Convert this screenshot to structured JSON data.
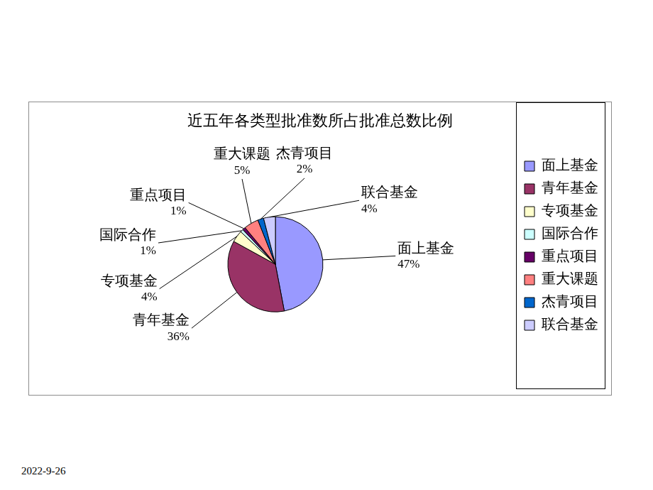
{
  "chart_data": {
    "type": "pie",
    "title": "近五年各类型批准数所占批准总数比例",
    "categories": [
      "面上基金",
      "青年基金",
      "专项基金",
      "国际合作",
      "重点项目",
      "重大课题",
      "杰青项目",
      "联合基金"
    ],
    "values": [
      47,
      36,
      4,
      1,
      1,
      5,
      2,
      4
    ],
    "value_labels": [
      "47%",
      "36%",
      "4%",
      "1%",
      "1%",
      "5%",
      "2%",
      "4%"
    ],
    "colors": [
      "#9999ff",
      "#993366",
      "#ffffcc",
      "#ccffff",
      "#660066",
      "#ff8080",
      "#0066cc",
      "#ccccff"
    ],
    "data_labels": true,
    "legend": "right"
  },
  "date": "2022-9-26"
}
